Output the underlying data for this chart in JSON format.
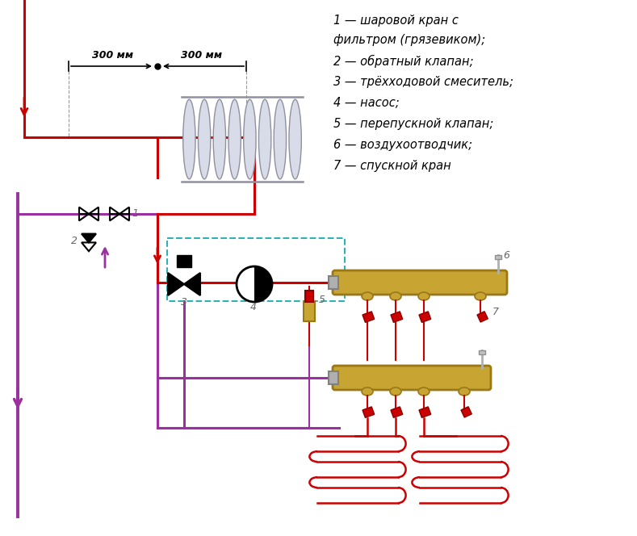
{
  "legend_lines": [
    "1 — шаровой кран с",
    "фильтром (грязевиком);",
    "2 — обратный клапан;",
    "3 — трёхходовой смеситель;",
    "4 — насос;",
    "5 — перепускной клапан;",
    "6 — воздухоотводчик;",
    "7 — спускной кран"
  ],
  "dim_text_1": "300 мм",
  "dim_text_2": "300 мм",
  "bg_color": "#ffffff",
  "red": "#cc0000",
  "purple": "#9b30a0",
  "gold": "#c8a432",
  "gold_edge": "#9a7818",
  "teal": "#30b0b0",
  "gray": "#aaaaaa"
}
